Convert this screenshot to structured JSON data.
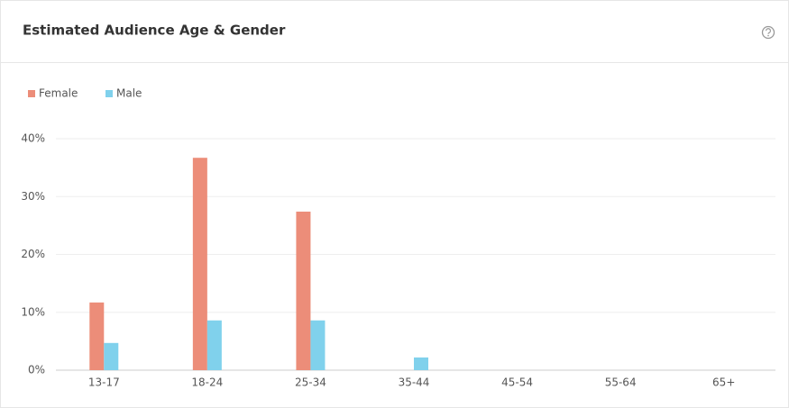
{
  "chart_data": {
    "type": "bar",
    "title": "Estimated Audience Age & Gender",
    "categories": [
      "13-17",
      "18-24",
      "25-34",
      "35-44",
      "45-54",
      "55-64",
      "65+"
    ],
    "series": [
      {
        "name": "Female",
        "color": "#ec8d79",
        "values": [
          11.7,
          36.7,
          27.4,
          0,
          0,
          0,
          0
        ]
      },
      {
        "name": "Male",
        "color": "#80d1ec",
        "values": [
          4.7,
          8.6,
          8.6,
          2.2,
          0,
          0,
          0
        ]
      }
    ],
    "ylim": [
      0,
      40
    ],
    "yticks": [
      {
        "value": 0,
        "label": "0%"
      },
      {
        "value": 10,
        "label": "10%"
      },
      {
        "value": 20,
        "label": "20%"
      },
      {
        "value": 30,
        "label": "30%"
      },
      {
        "value": 40,
        "label": "40%"
      }
    ],
    "grid": true,
    "legend": "top-left"
  }
}
